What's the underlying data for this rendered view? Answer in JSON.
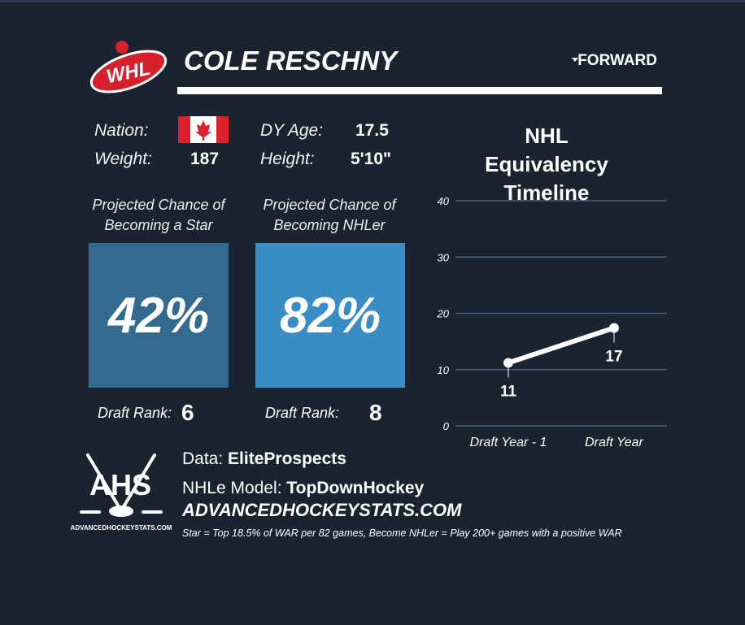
{
  "header": {
    "league_logo": "WHL",
    "name": "COLE RESCHNY",
    "position": "FORWARD"
  },
  "bio": {
    "nation_label": "Nation:",
    "weight_label": "Weight:",
    "weight": "187",
    "age_label": "DY Age:",
    "age": "17.5",
    "height_label": "Height:",
    "height": "5'10\""
  },
  "cards": [
    {
      "title_lines": [
        "Projected Chance of",
        "Becoming a Star"
      ],
      "value": "42%",
      "rank_label": "Draft Rank:",
      "rank": "6"
    },
    {
      "title_lines": [
        "Projected Chance of",
        "Becoming NHLer"
      ],
      "value": "82%",
      "rank_label": "Draft Rank:",
      "rank": "8"
    }
  ],
  "chart_data": {
    "type": "line",
    "title": "NHL Equivalency Timeline",
    "categories": [
      "Draft Year - 1",
      "Draft Year"
    ],
    "values": [
      11.2,
      17.4
    ],
    "value_labels": [
      "11",
      "17"
    ],
    "color": "#ffffff",
    "ylim": [
      0,
      40
    ],
    "yticks": [
      0,
      10,
      20,
      30,
      40
    ],
    "grid": true
  },
  "footer": {
    "logo_text": "AHS",
    "logo_site": "ADVANCEDHOCKEYSTATS.COM",
    "data_label": "Data:",
    "data_source": "EliteProspects",
    "model_label": "NHLe Model:",
    "model": "TopDownHockey",
    "site": "ADVANCEDHOCKEYSTATS.COM",
    "note": "Star = Top 18.5% of WAR per 82 games, Become NHLer = Play 200+ games with a positive WAR"
  }
}
